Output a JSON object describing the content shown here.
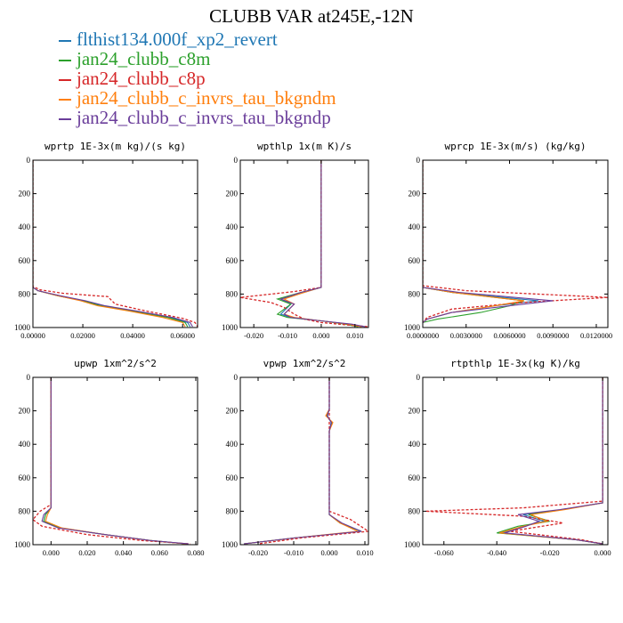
{
  "title": "CLUBB VAR at245E,-12N",
  "legend": [
    {
      "label": "flthist134.000f_xp2_revert",
      "color": "#1f77b4"
    },
    {
      "label": "jan24_clubb_c8m",
      "color": "#2ca02c"
    },
    {
      "label": "jan24_clubb_c8p",
      "color": "#d62728"
    },
    {
      "label": "jan24_clubb_c_invrs_tau_bkgndm",
      "color": "#ff7f0e"
    },
    {
      "label": "jan24_clubb_c_invrs_tau_bkgndp",
      "color": "#6a3d9a"
    }
  ],
  "chart_data": [
    {
      "type": "line",
      "title": "wprtp  1E-3x(m kg)/(s kg)",
      "xlim": [
        0,
        0.066
      ],
      "xticks": [
        "0.00000",
        "0.02000",
        "0.04000",
        "0.06000"
      ],
      "xtick_values": [
        0,
        0.02,
        0.04,
        0.06
      ],
      "ylim": [
        1000,
        0
      ],
      "yticks": [
        "0",
        "200",
        "400",
        "600",
        "800",
        "1000"
      ],
      "series": [
        {
          "x": [
            0,
            0,
            0,
            0.002,
            0.01,
            0.02,
            0.028,
            0.04,
            0.055,
            0.062,
            0.063
          ],
          "y": [
            0,
            500,
            760,
            780,
            810,
            840,
            870,
            900,
            940,
            970,
            995
          ]
        },
        {
          "x": [
            0,
            0,
            0,
            0.002,
            0.01,
            0.02,
            0.027,
            0.039,
            0.054,
            0.061,
            0.062
          ],
          "y": [
            0,
            500,
            760,
            780,
            810,
            840,
            870,
            900,
            940,
            970,
            995
          ]
        },
        {
          "x": [
            0,
            0,
            0,
            0.003,
            0.012,
            0.025,
            0.03,
            0.033,
            0.045,
            0.06,
            0.065,
            0.066
          ],
          "y": [
            0,
            500,
            755,
            775,
            795,
            810,
            815,
            860,
            900,
            945,
            970,
            995
          ]
        },
        {
          "x": [
            0,
            0,
            0,
            0.002,
            0.01,
            0.019,
            0.026,
            0.038,
            0.052,
            0.06,
            0.061
          ],
          "y": [
            0,
            500,
            760,
            780,
            810,
            840,
            870,
            900,
            940,
            970,
            995
          ]
        },
        {
          "x": [
            0,
            0,
            0,
            0.002,
            0.011,
            0.021,
            0.029,
            0.041,
            0.056,
            0.063,
            0.064
          ],
          "y": [
            0,
            500,
            760,
            780,
            810,
            840,
            870,
            900,
            940,
            970,
            995
          ]
        }
      ]
    },
    {
      "type": "line",
      "title": "wpthlp  1x(m K)/s",
      "xlim": [
        -0.024,
        0.014
      ],
      "xticks": [
        "-0.020",
        "-0.010",
        "0.000",
        "0.010"
      ],
      "xtick_values": [
        -0.02,
        -0.01,
        0,
        0.01
      ],
      "ylim": [
        1000,
        0
      ],
      "yticks": [
        "0",
        "200",
        "400",
        "600",
        "800",
        "1000"
      ],
      "series": [
        {
          "x": [
            0,
            0,
            0,
            -0.005,
            -0.012,
            -0.009,
            -0.012,
            -0.009,
            0,
            0.008,
            0.012
          ],
          "y": [
            0,
            400,
            760,
            790,
            830,
            860,
            920,
            940,
            960,
            980,
            995
          ]
        },
        {
          "x": [
            0,
            0,
            0,
            -0.006,
            -0.013,
            -0.009,
            -0.013,
            -0.01,
            0,
            0.007,
            0.011
          ],
          "y": [
            0,
            400,
            760,
            790,
            830,
            860,
            920,
            940,
            960,
            980,
            995
          ]
        },
        {
          "x": [
            0,
            0,
            0,
            -0.008,
            -0.024,
            -0.015,
            -0.011,
            -0.008,
            -0.005,
            0,
            0.008,
            0.014
          ],
          "y": [
            0,
            400,
            760,
            785,
            820,
            850,
            880,
            920,
            950,
            970,
            985,
            995
          ]
        },
        {
          "x": [
            0,
            0,
            0,
            -0.005,
            -0.011,
            -0.008,
            -0.011,
            -0.008,
            0,
            0.008,
            0.012
          ],
          "y": [
            0,
            400,
            760,
            790,
            830,
            860,
            920,
            940,
            960,
            980,
            995
          ]
        },
        {
          "x": [
            0,
            0,
            0,
            -0.006,
            -0.012,
            -0.008,
            -0.011,
            -0.009,
            0,
            0.009,
            0.013
          ],
          "y": [
            0,
            400,
            760,
            790,
            830,
            860,
            920,
            940,
            960,
            980,
            995
          ]
        }
      ]
    },
    {
      "type": "line",
      "title": "wprcp  1E-3x(m/s) (kg/kg)",
      "xlim": [
        0,
        0.0128
      ],
      "xticks": [
        "0.0000000",
        "0.0030000",
        "0.0060000",
        "0.0090000",
        "0.0120000"
      ],
      "xtick_values": [
        0,
        0.003,
        0.006,
        0.009,
        0.012
      ],
      "ylim": [
        1000,
        0
      ],
      "yticks": [
        "0",
        "200",
        "400",
        "600",
        "800",
        "1000"
      ],
      "series": [
        {
          "x": [
            0,
            0,
            0,
            0.002,
            0.008,
            0.005,
            0.002,
            0.0003,
            0
          ],
          "y": [
            0,
            500,
            760,
            790,
            840,
            870,
            910,
            950,
            970
          ]
        },
        {
          "x": [
            0,
            0,
            0,
            0.002,
            0.007,
            0.006,
            0.004,
            0.001,
            0
          ],
          "y": [
            0,
            500,
            760,
            790,
            840,
            870,
            910,
            950,
            970
          ]
        },
        {
          "x": [
            0,
            0,
            0,
            0.003,
            0.0128,
            0.007,
            0.002,
            0.0003,
            0
          ],
          "y": [
            0,
            500,
            750,
            780,
            820,
            850,
            890,
            940,
            970
          ]
        },
        {
          "x": [
            0,
            0,
            0,
            0.002,
            0.007,
            0.005,
            0.002,
            0.0003,
            0
          ],
          "y": [
            0,
            500,
            760,
            790,
            840,
            870,
            910,
            950,
            970
          ]
        },
        {
          "x": [
            0,
            0,
            0,
            0.0025,
            0.009,
            0.006,
            0.002,
            0.0003,
            0
          ],
          "y": [
            0,
            500,
            760,
            790,
            840,
            870,
            910,
            950,
            970
          ]
        }
      ]
    },
    {
      "type": "line",
      "title": "upwp  1xm^2/s^2",
      "xlim": [
        -0.01,
        0.081
      ],
      "xticks": [
        "0.000",
        "0.020",
        "0.040",
        "0.060",
        "0.080"
      ],
      "xtick_values": [
        0,
        0.02,
        0.04,
        0.06,
        0.08
      ],
      "ylim": [
        1000,
        0
      ],
      "yticks": [
        "0",
        "200",
        "400",
        "600",
        "800",
        "1000"
      ],
      "series": [
        {
          "x": [
            0,
            0,
            0,
            0,
            -0.003,
            -0.004,
            0.005,
            0.03,
            0.055,
            0.075
          ],
          "y": [
            0,
            300,
            600,
            780,
            820,
            860,
            900,
            940,
            975,
            995
          ]
        },
        {
          "x": [
            0,
            0,
            0,
            0,
            -0.003,
            -0.004,
            0.005,
            0.03,
            0.055,
            0.075
          ],
          "y": [
            0,
            300,
            600,
            780,
            820,
            860,
            900,
            940,
            975,
            995
          ]
        },
        {
          "x": [
            0,
            0,
            0,
            0,
            -0.006,
            -0.01,
            -0.005,
            0.02,
            0.05,
            0.077
          ],
          "y": [
            0,
            300,
            600,
            760,
            800,
            850,
            890,
            940,
            975,
            995
          ]
        },
        {
          "x": [
            0,
            0,
            0,
            0,
            -0.002,
            -0.003,
            0.006,
            0.03,
            0.055,
            0.075
          ],
          "y": [
            0,
            300,
            600,
            780,
            820,
            860,
            900,
            940,
            975,
            995
          ]
        },
        {
          "x": [
            0,
            0,
            0,
            0,
            -0.004,
            -0.005,
            0.004,
            0.03,
            0.055,
            0.076
          ],
          "y": [
            0,
            300,
            600,
            780,
            820,
            860,
            900,
            940,
            975,
            995
          ]
        }
      ]
    },
    {
      "type": "line",
      "title": "vpwp  1xm^2/s^2",
      "xlim": [
        -0.025,
        0.011
      ],
      "xticks": [
        "-0.020",
        "-0.010",
        "0.000",
        "0.010"
      ],
      "xtick_values": [
        -0.02,
        -0.01,
        0,
        0.01
      ],
      "ylim": [
        1000,
        0
      ],
      "yticks": [
        "0",
        "200",
        "400",
        "600",
        "800",
        "1000"
      ],
      "series": [
        {
          "x": [
            0,
            0,
            0,
            -0.0005,
            0.0005,
            0,
            0,
            0,
            0.003,
            0.009,
            -0.01,
            -0.024
          ],
          "y": [
            0,
            150,
            190,
            230,
            270,
            320,
            700,
            820,
            870,
            920,
            960,
            995
          ]
        },
        {
          "x": [
            0,
            0,
            0,
            -0.0008,
            0.0008,
            0,
            0,
            0,
            0.003,
            0.009,
            -0.01,
            -0.024
          ],
          "y": [
            0,
            150,
            190,
            230,
            270,
            320,
            700,
            820,
            870,
            920,
            960,
            995
          ]
        },
        {
          "x": [
            0,
            0,
            0,
            0,
            0,
            0,
            0,
            0,
            0.006,
            0.011,
            -0.008,
            -0.02
          ],
          "y": [
            0,
            150,
            190,
            230,
            270,
            320,
            700,
            800,
            850,
            920,
            960,
            995
          ]
        },
        {
          "x": [
            0,
            0,
            0,
            -0.001,
            0.001,
            0,
            0,
            0,
            0.003,
            0.008,
            -0.01,
            -0.024
          ],
          "y": [
            0,
            150,
            190,
            230,
            270,
            320,
            700,
            820,
            870,
            920,
            960,
            995
          ]
        },
        {
          "x": [
            0,
            0,
            0,
            -0.0006,
            0.0006,
            0,
            0,
            0,
            0.0035,
            0.009,
            -0.01,
            -0.024
          ],
          "y": [
            0,
            150,
            190,
            230,
            270,
            320,
            700,
            820,
            870,
            920,
            960,
            995
          ]
        }
      ]
    },
    {
      "type": "line",
      "title": "rtpthlp  1E-3x(kg K)/kg",
      "xlim": [
        -0.068,
        0.002
      ],
      "xticks": [
        "-0.060",
        "-0.040",
        "-0.020",
        "0.000"
      ],
      "xtick_values": [
        -0.06,
        -0.04,
        -0.02,
        0
      ],
      "ylim": [
        1000,
        0
      ],
      "yticks": [
        "0",
        "200",
        "400",
        "600",
        "800",
        "1000"
      ],
      "series": [
        {
          "x": [
            0,
            0,
            0,
            -0.015,
            -0.03,
            -0.022,
            -0.03,
            -0.038,
            -0.01,
            0
          ],
          "y": [
            0,
            500,
            750,
            790,
            820,
            860,
            890,
            930,
            970,
            995
          ]
        },
        {
          "x": [
            0,
            0,
            0,
            -0.015,
            -0.028,
            -0.02,
            -0.032,
            -0.04,
            -0.01,
            0
          ],
          "y": [
            0,
            500,
            750,
            790,
            820,
            860,
            890,
            930,
            970,
            995
          ]
        },
        {
          "x": [
            0,
            0,
            0,
            -0.03,
            -0.067,
            -0.03,
            -0.015,
            -0.035,
            -0.008,
            0
          ],
          "y": [
            0,
            500,
            740,
            780,
            800,
            830,
            870,
            920,
            970,
            995
          ]
        },
        {
          "x": [
            0,
            0,
            0,
            -0.014,
            -0.027,
            -0.021,
            -0.03,
            -0.039,
            -0.01,
            0
          ],
          "y": [
            0,
            500,
            750,
            790,
            820,
            860,
            890,
            930,
            970,
            995
          ]
        },
        {
          "x": [
            0,
            0,
            0,
            -0.016,
            -0.032,
            -0.024,
            -0.029,
            -0.037,
            -0.01,
            0
          ],
          "y": [
            0,
            500,
            750,
            790,
            820,
            860,
            890,
            930,
            970,
            995
          ]
        }
      ]
    }
  ]
}
